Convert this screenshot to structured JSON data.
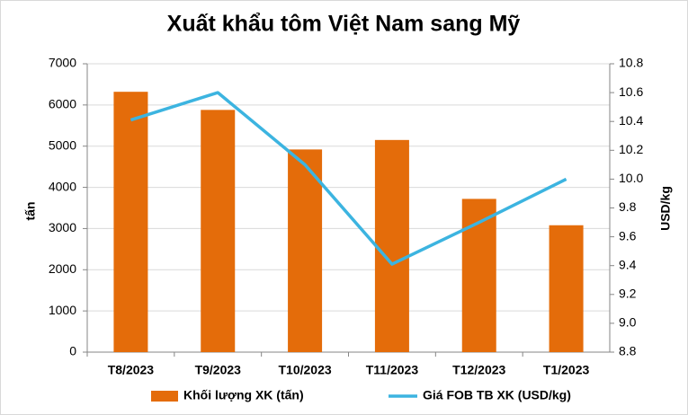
{
  "chart_data": {
    "type": "bar",
    "title": "Xuất khẩu tôm Việt Nam sang Mỹ",
    "y_label": "tấn",
    "y2_label": "USD/kg",
    "categories": [
      "T8/2023",
      "T9/2023",
      "T10/2023",
      "T11/2023",
      "T12/2023",
      "T1/2023"
    ],
    "series": [
      {
        "name": "Khối lượng XK (tấn)",
        "type": "bar",
        "color": "#e46c0a",
        "values": [
          6320,
          5880,
          4920,
          5150,
          3720,
          3080
        ]
      },
      {
        "name": "Giá FOB TB XK (USD/kg)",
        "type": "line",
        "axis": "y2",
        "color": "#3cb4e0",
        "values": [
          10.41,
          10.6,
          10.1,
          9.41,
          9.7,
          10.0
        ]
      }
    ],
    "ylim": [
      0,
      7000
    ],
    "yticks": [
      0,
      1000,
      2000,
      3000,
      4000,
      5000,
      6000,
      7000
    ],
    "y2lim": [
      8.8,
      10.8
    ],
    "y2ticks": [
      8.8,
      {
        "value": 9,
        "label": "9.0"
      },
      9.2,
      9.4,
      9.6,
      9.8,
      {
        "value": 10,
        "label": "10.0"
      },
      10.2,
      10.4,
      10.6,
      10.8
    ],
    "grid": true,
    "legend": "bottom"
  }
}
